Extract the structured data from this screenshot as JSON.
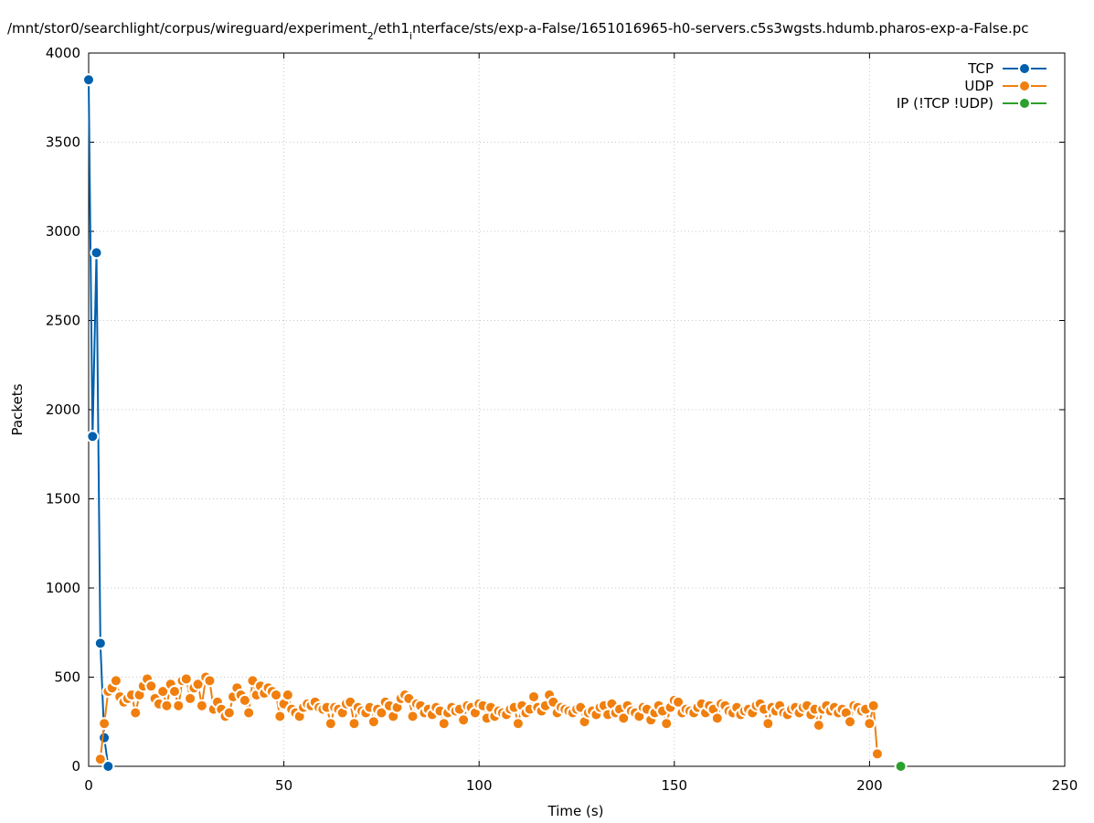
{
  "chart_data": {
    "type": "line",
    "title": [
      "/mnt/stor0/searchlight/corpus/wireguard/experiment",
      "2",
      "/eth1",
      "i",
      "nterface/sts/exp-a-False/1651016965-h0-servers.c5s3wgsts.hdumb.pharos-exp-a-False.pc"
    ],
    "x_label": "Time (s)",
    "y_label": "Packets",
    "xlim": [
      0,
      250
    ],
    "xticks": [
      0,
      50,
      100,
      150,
      200,
      250
    ],
    "ylim": [
      0,
      4000
    ],
    "yticks": [
      0,
      500,
      1000,
      1500,
      2000,
      2500,
      3000,
      3500,
      4000
    ],
    "grid": true,
    "legend": "top-right",
    "series": [
      {
        "name": "TCP",
        "color": "#0060ad",
        "x": [
          0,
          1,
          2,
          3,
          4,
          5
        ],
        "values": [
          3850,
          1850,
          2880,
          690,
          160,
          0
        ]
      },
      {
        "name": "UDP",
        "color": "#f07f0e",
        "x": [
          3,
          4,
          5,
          6,
          7,
          8,
          9,
          10,
          11,
          12,
          13,
          14,
          15,
          16,
          17,
          18,
          19,
          20,
          21,
          22,
          23,
          24,
          25,
          26,
          27,
          28,
          29,
          30,
          31,
          32,
          33,
          34,
          35,
          36,
          37,
          38,
          39,
          40,
          41,
          42,
          43,
          44,
          45,
          46,
          47,
          48,
          49,
          50,
          51,
          52,
          53,
          54,
          55,
          56,
          57,
          58,
          59,
          60,
          61,
          62,
          63,
          64,
          65,
          66,
          67,
          68,
          69,
          70,
          71,
          72,
          73,
          74,
          75,
          76,
          77,
          78,
          79,
          80,
          81,
          82,
          83,
          84,
          85,
          86,
          87,
          88,
          89,
          90,
          91,
          92,
          93,
          94,
          95,
          96,
          97,
          98,
          99,
          100,
          101,
          102,
          103,
          104,
          105,
          106,
          107,
          108,
          109,
          110,
          111,
          112,
          113,
          114,
          115,
          116,
          117,
          118,
          119,
          120,
          121,
          122,
          123,
          124,
          125,
          126,
          127,
          128,
          129,
          130,
          131,
          132,
          133,
          134,
          135,
          136,
          137,
          138,
          139,
          140,
          141,
          142,
          143,
          144,
          145,
          146,
          147,
          148,
          149,
          150,
          151,
          152,
          153,
          154,
          155,
          156,
          157,
          158,
          159,
          160,
          161,
          162,
          163,
          164,
          165,
          166,
          167,
          168,
          169,
          170,
          171,
          172,
          173,
          174,
          175,
          176,
          177,
          178,
          179,
          180,
          181,
          182,
          183,
          184,
          185,
          186,
          187,
          188,
          189,
          190,
          191,
          192,
          193,
          194,
          195,
          196,
          197,
          198,
          199,
          200,
          201,
          202
        ],
        "values": [
          40,
          240,
          420,
          440,
          480,
          390,
          360,
          380,
          400,
          300,
          400,
          450,
          490,
          450,
          380,
          350,
          420,
          340,
          460,
          420,
          340,
          480,
          490,
          380,
          440,
          460,
          340,
          500,
          480,
          320,
          360,
          320,
          280,
          300,
          390,
          440,
          400,
          370,
          300,
          480,
          400,
          450,
          410,
          440,
          420,
          400,
          280,
          350,
          400,
          320,
          300,
          280,
          330,
          350,
          340,
          360,
          330,
          320,
          330,
          240,
          330,
          320,
          300,
          350,
          360,
          240,
          330,
          310,
          300,
          330,
          250,
          320,
          300,
          360,
          340,
          280,
          330,
          380,
          400,
          380,
          280,
          350,
          340,
          300,
          320,
          290,
          330,
          310,
          240,
          300,
          330,
          310,
          320,
          260,
          340,
          330,
          300,
          350,
          340,
          270,
          330,
          280,
          310,
          300,
          290,
          320,
          330,
          240,
          340,
          300,
          320,
          390,
          330,
          310,
          340,
          400,
          360,
          300,
          330,
          320,
          310,
          300,
          320,
          330,
          250,
          300,
          310,
          290,
          330,
          340,
          290,
          350,
          300,
          320,
          270,
          340,
          310,
          300,
          280,
          330,
          320,
          260,
          300,
          340,
          310,
          240,
          330,
          370,
          360,
          300,
          320,
          310,
          300,
          330,
          350,
          300,
          340,
          320,
          270,
          350,
          340,
          310,
          300,
          330,
          290,
          310,
          320,
          300,
          340,
          350,
          320,
          240,
          330,
          310,
          340,
          300,
          290,
          320,
          330,
          300,
          330,
          340,
          290,
          320,
          230,
          320,
          340,
          310,
          330,
          300,
          320,
          300,
          250,
          340,
          330,
          310,
          320,
          240,
          340,
          70
        ]
      },
      {
        "name": "IP (!TCP  !UDP)",
        "color": "#2ca02c",
        "x": [
          208
        ],
        "values": [
          0
        ]
      }
    ]
  }
}
